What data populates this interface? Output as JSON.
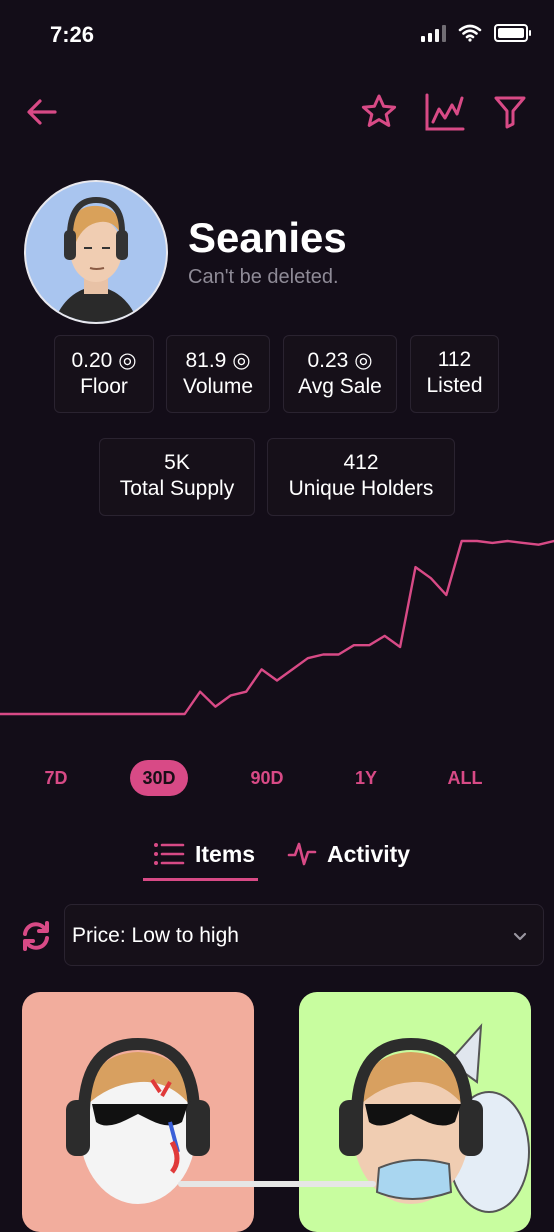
{
  "status_bar": {
    "time": "7:26"
  },
  "collection": {
    "title": "Seanies",
    "subtitle": "Can't be deleted."
  },
  "stats": [
    {
      "value": "0.20 ◎",
      "label": "Floor"
    },
    {
      "value": "81.9 ◎",
      "label": "Volume"
    },
    {
      "value": "0.23 ◎",
      "label": "Avg Sale"
    },
    {
      "value": "112",
      "label": "Listed"
    },
    {
      "value": "5K",
      "label": "Total Supply"
    },
    {
      "value": "412",
      "label": "Unique Holders"
    }
  ],
  "chart_data": {
    "type": "line",
    "title": "",
    "xlabel": "",
    "ylabel": "",
    "color": "#d84a86",
    "grid": false,
    "legend": "none",
    "ylim": [
      0,
      100
    ],
    "x": [
      0,
      1,
      2,
      3,
      4,
      5,
      6,
      7,
      8,
      9,
      10,
      11,
      12,
      13,
      14,
      15,
      16,
      17,
      18,
      19,
      20,
      21,
      22,
      23,
      24,
      25,
      26,
      27,
      28,
      29,
      30,
      31,
      32,
      33,
      34,
      35,
      36
    ],
    "values": [
      0,
      0,
      0,
      0,
      0,
      0,
      0,
      0,
      0,
      0,
      0,
      0,
      0,
      12,
      4,
      10,
      12,
      24,
      18,
      24,
      30,
      32,
      32,
      37,
      37,
      42,
      36,
      79,
      73,
      64,
      93,
      93,
      92,
      93,
      92,
      91,
      93
    ]
  },
  "ranges": [
    "7D",
    "30D",
    "90D",
    "1Y",
    "ALL"
  ],
  "active_range": "30D",
  "tabs": {
    "items": "Items",
    "activity": "Activity"
  },
  "sort": {
    "label": "Price: Low to high"
  },
  "colors": {
    "accent": "#d84a86",
    "background": "#130d18",
    "card1": "#f2ad9d",
    "card2": "#c8fd9f"
  },
  "icons": [
    "back-arrow-icon",
    "star-icon",
    "chart-icon",
    "filter-icon",
    "list-icon",
    "activity-icon",
    "refresh-icon",
    "chevron-down-icon"
  ]
}
